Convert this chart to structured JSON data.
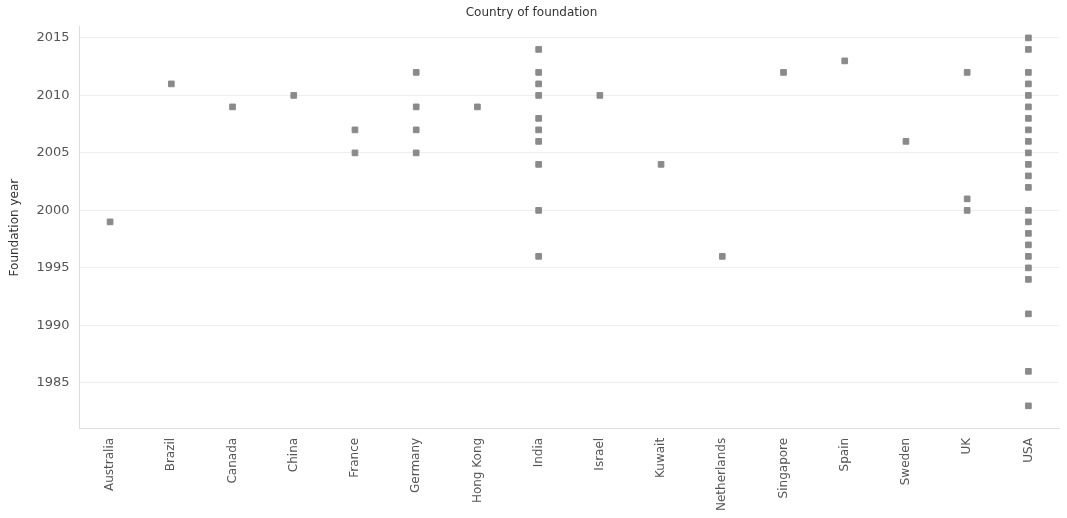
{
  "chart_data": {
    "type": "scatter",
    "title": "Country of foundation",
    "ylabel": "Foundation year",
    "categories": [
      "Australia",
      "Brazil",
      "Canada",
      "China",
      "France",
      "Germany",
      "Hong Kong",
      "India",
      "Israel",
      "Kuwait",
      "Netherlands",
      "Singapore",
      "Spain",
      "Sweden",
      "UK",
      "USA"
    ],
    "series": [
      {
        "type": "scatter",
        "color": "#8a8a8a",
        "x": [
          "Australia",
          "Brazil",
          "Canada",
          "China",
          "France",
          "France",
          "Germany",
          "Germany",
          "Germany",
          "Germany",
          "Hong Kong",
          "India",
          "India",
          "India",
          "India",
          "India",
          "India",
          "India",
          "India",
          "India",
          "India",
          "Israel",
          "Kuwait",
          "Netherlands",
          "Singapore",
          "Spain",
          "Sweden",
          "UK",
          "UK",
          "UK",
          "USA",
          "USA",
          "USA",
          "USA",
          "USA",
          "USA",
          "USA",
          "USA",
          "USA",
          "USA",
          "USA",
          "USA",
          "USA",
          "USA",
          "USA",
          "USA",
          "USA",
          "USA",
          "USA",
          "USA",
          "USA",
          "USA",
          "USA"
        ],
        "values": [
          1999,
          2011,
          2009,
          2010,
          2007,
          2005,
          2012,
          2009,
          2007,
          2005,
          2009,
          2014,
          2012,
          2011,
          2010,
          2008,
          2007,
          2006,
          2004,
          2000,
          1996,
          2010,
          2004,
          1996,
          2012,
          2013,
          2006,
          2012,
          2001,
          2000,
          2015,
          2014,
          2012,
          2011,
          2010,
          2009,
          2008,
          2007,
          2006,
          2005,
          2004,
          2003,
          2002,
          2000,
          1999,
          1998,
          1997,
          1996,
          1995,
          1994,
          1991,
          1986,
          1983
        ]
      }
    ],
    "ylim": [
      1981,
      2016
    ],
    "yticks": [
      1985,
      1990,
      1995,
      2000,
      2005,
      2010,
      2015
    ],
    "grid": "y",
    "legend": false,
    "marker": "square"
  }
}
